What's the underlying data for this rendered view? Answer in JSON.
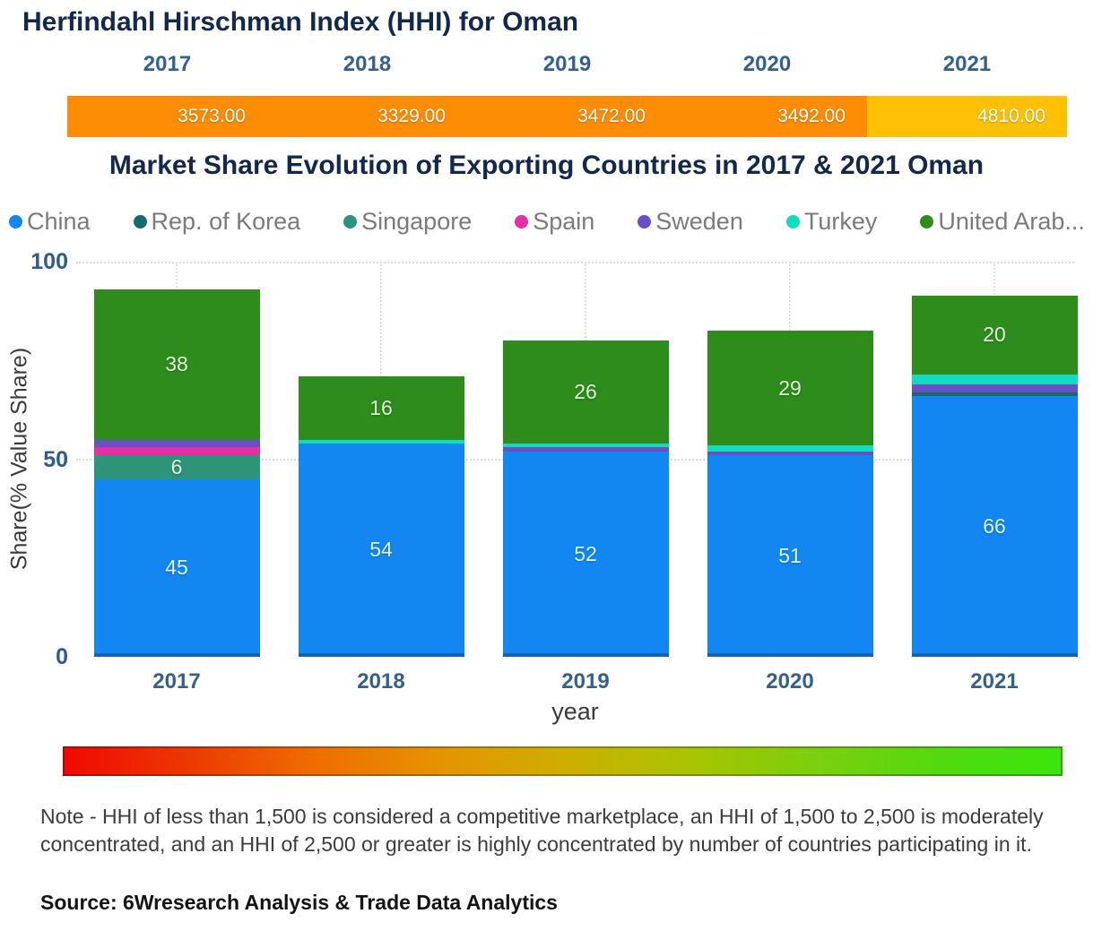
{
  "hhi": {
    "title": "Herfindahl Hirschman Index (HHI) for Oman"
  },
  "market": {
    "title": "Market Share Evolution of Exporting Countries in 2017 & 2021 Oman",
    "xlabel": "year",
    "ylabel": "Share(% Value Share)",
    "yticks": [
      100,
      50,
      0
    ]
  },
  "chart_data": [
    {
      "type": "bar",
      "title": "Herfindahl Hirschman Index (HHI) for Oman",
      "categories": [
        "2017",
        "2018",
        "2019",
        "2020",
        "2021"
      ],
      "values": [
        3573,
        3329,
        3472,
        3492,
        4810
      ],
      "value_labels": [
        "3573.00",
        "3329.00",
        "3472.00",
        "3492.00",
        "4810.00"
      ],
      "bar_colors": [
        "#FE8D05",
        "#FE8D05",
        "#FE8D05",
        "#FE8D05",
        "#FFC005"
      ],
      "xlabel": "",
      "ylabel": ""
    },
    {
      "type": "bar",
      "stacked": true,
      "title": "Market Share Evolution of Exporting Countries in 2017 & 2021 Oman",
      "categories": [
        "2017",
        "2018",
        "2019",
        "2020",
        "2021"
      ],
      "series": [
        {
          "name": "China",
          "color": "#1287F2",
          "values": [
            45,
            54,
            52,
            51,
            66
          ]
        },
        {
          "name": "Rep. of Korea",
          "color": "#156A70",
          "values": [
            0,
            0,
            0,
            0,
            1
          ]
        },
        {
          "name": "Singapore",
          "color": "#2D9479",
          "values": [
            6,
            0,
            0,
            0,
            0
          ]
        },
        {
          "name": "Spain",
          "color": "#E62DA4",
          "values": [
            2,
            0,
            0,
            0,
            0
          ]
        },
        {
          "name": "Sweden",
          "color": "#6A4FC4",
          "values": [
            2,
            0,
            1,
            1,
            2
          ]
        },
        {
          "name": "Turkey",
          "color": "#0FDCC1",
          "values": [
            0,
            1,
            1,
            1.5,
            2.5
          ]
        },
        {
          "name": "United Arab...",
          "color": "#2E8C1C",
          "values": [
            38,
            16,
            26,
            29,
            20
          ]
        }
      ],
      "xlabel": "year",
      "ylabel": "Share(% Value Share)",
      "ylim": [
        0,
        100
      ],
      "grid": "dotted horizontal at 50 and 100, dotted vertical at category centers",
      "legend_position": "top",
      "label_rule": "segment values >= 6 are labeled inside the bar"
    }
  ],
  "gradient_scale": {
    "description": "red-to-green horizontal color ramp",
    "stops": [
      "#F20800",
      "#EE3A00",
      "#F06C00",
      "#E59400",
      "#CFAE00",
      "#A8C400",
      "#7CCF0C",
      "#52DA0E",
      "#3BE60D"
    ]
  },
  "note": "Note - HHI of less than 1,500 is considered a competitive marketplace, an HHI of 1,500 to 2,500 is moderately concentrated, and an HHI of 2,500 or greater is highly concentrated by number of countries participating in it.",
  "source": "Source: 6Wresearch Analysis & Trade Data Analytics"
}
